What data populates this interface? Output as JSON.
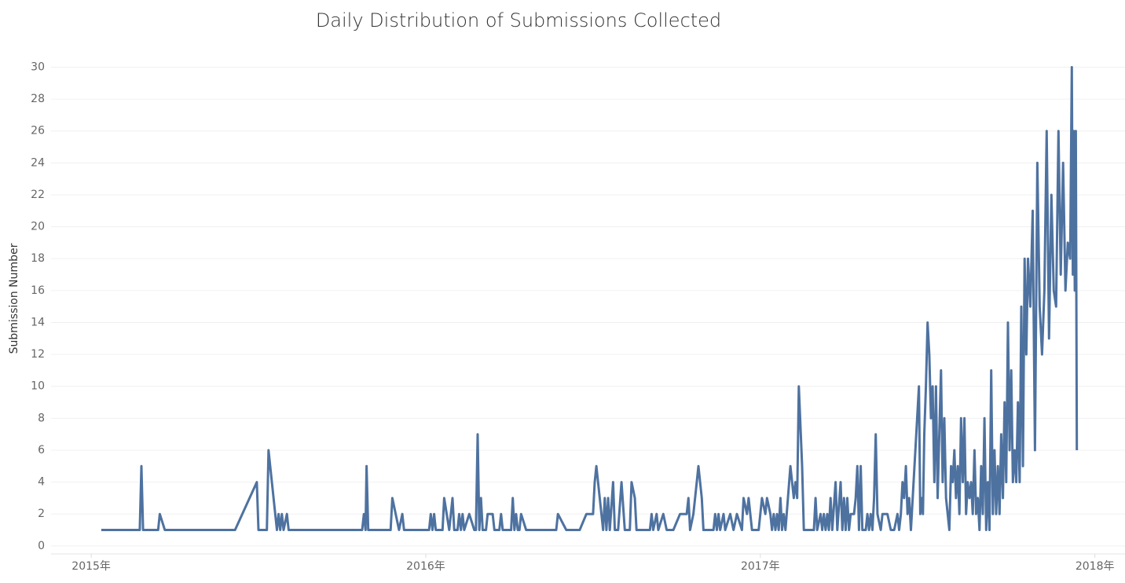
{
  "chart_data": {
    "type": "line",
    "title": "Daily Distribution of Submissions Collected",
    "y_label": "Submission Number",
    "color": "#4e72a0",
    "grid": true,
    "xlim": [
      2014.88,
      2018.09
    ],
    "xticks": [
      {
        "value": 2015,
        "label": "2015年"
      },
      {
        "value": 2016,
        "label": "2016年"
      },
      {
        "value": 2017,
        "label": "2017年"
      },
      {
        "value": 2018,
        "label": "2018年"
      }
    ],
    "ylim": [
      -0.5,
      31.5
    ],
    "yticks": [
      0,
      2,
      4,
      6,
      8,
      10,
      12,
      14,
      16,
      18,
      20,
      22,
      24,
      26,
      28,
      30
    ],
    "x": [
      2015.03,
      2015.145,
      2015.15,
      2015.155,
      2015.2,
      2015.205,
      2015.22,
      2015.43,
      2015.495,
      2015.5,
      2015.525,
      2015.53,
      2015.545,
      2015.555,
      2015.56,
      2015.565,
      2015.57,
      2015.575,
      2015.585,
      2015.59,
      2015.81,
      2015.815,
      2015.82,
      2015.823,
      2015.828,
      2015.895,
      2015.9,
      2015.92,
      2015.93,
      2015.935,
      2016.01,
      2016.015,
      2016.02,
      2016.025,
      2016.03,
      2016.05,
      2016.055,
      2016.07,
      2016.08,
      2016.085,
      2016.095,
      2016.1,
      2016.105,
      2016.11,
      2016.115,
      2016.13,
      2016.145,
      2016.15,
      2016.155,
      2016.16,
      2016.165,
      2016.17,
      2016.18,
      2016.185,
      2016.2,
      2016.205,
      2016.22,
      2016.225,
      2016.23,
      2016.255,
      2016.26,
      2016.265,
      2016.27,
      2016.275,
      2016.28,
      2016.285,
      2016.3,
      2016.39,
      2016.395,
      2016.42,
      2016.46,
      2016.48,
      2016.5,
      2016.505,
      2016.51,
      2016.52,
      2016.53,
      2016.535,
      2016.54,
      2016.545,
      2016.55,
      2016.56,
      2016.565,
      2016.575,
      2016.585,
      2016.595,
      2016.61,
      2016.615,
      2016.625,
      2016.63,
      2016.67,
      2016.675,
      2016.68,
      2016.69,
      2016.695,
      2016.71,
      2016.72,
      2016.74,
      2016.76,
      2016.78,
      2016.785,
      2016.79,
      2016.8,
      2016.81,
      2016.815,
      2016.825,
      2016.83,
      2016.86,
      2016.865,
      2016.87,
      2016.875,
      2016.88,
      2016.89,
      2016.895,
      2016.91,
      2016.92,
      2016.93,
      2016.945,
      2016.95,
      2016.96,
      2016.965,
      2016.975,
      2016.995,
      2017.0,
      2017.005,
      2017.015,
      2017.02,
      2017.03,
      2017.035,
      2017.04,
      2017.045,
      2017.05,
      2017.055,
      2017.06,
      2017.065,
      2017.07,
      2017.075,
      2017.09,
      2017.1,
      2017.105,
      2017.11,
      2017.115,
      2017.125,
      2017.13,
      2017.16,
      2017.165,
      2017.17,
      2017.18,
      2017.185,
      2017.19,
      2017.195,
      2017.2,
      2017.205,
      2017.21,
      2017.215,
      2017.225,
      2017.23,
      2017.24,
      2017.245,
      2017.25,
      2017.255,
      2017.26,
      2017.265,
      2017.27,
      2017.28,
      2017.285,
      2017.29,
      2017.295,
      2017.3,
      2017.305,
      2017.315,
      2017.32,
      2017.325,
      2017.33,
      2017.335,
      2017.34,
      2017.345,
      2017.35,
      2017.36,
      2017.365,
      2017.38,
      2017.39,
      2017.4,
      2017.41,
      2017.415,
      2017.42,
      2017.425,
      2017.43,
      2017.435,
      2017.44,
      2017.445,
      2017.45,
      2017.474,
      2017.478,
      2017.482,
      2017.486,
      2017.49,
      2017.495,
      2017.5,
      2017.505,
      2017.51,
      2017.515,
      2017.52,
      2017.525,
      2017.53,
      2017.535,
      2017.54,
      2017.545,
      2017.55,
      2017.555,
      2017.565,
      2017.57,
      2017.575,
      2017.58,
      2017.585,
      2017.59,
      2017.595,
      2017.6,
      2017.605,
      2017.61,
      2017.615,
      2017.62,
      2017.625,
      2017.63,
      2017.635,
      2017.64,
      2017.645,
      2017.65,
      2017.655,
      2017.66,
      2017.665,
      2017.67,
      2017.675,
      2017.68,
      2017.685,
      2017.69,
      2017.695,
      2017.7,
      2017.705,
      2017.71,
      2017.715,
      2017.72,
      2017.725,
      2017.73,
      2017.735,
      2017.74,
      2017.745,
      2017.75,
      2017.755,
      2017.76,
      2017.765,
      2017.77,
      2017.775,
      2017.78,
      2017.785,
      2017.79,
      2017.795,
      2017.8,
      2017.807,
      2017.814,
      2017.821,
      2017.828,
      2017.835,
      2017.842,
      2017.849,
      2017.856,
      2017.863,
      2017.87,
      2017.877,
      2017.884,
      2017.891,
      2017.898,
      2017.905,
      2017.912,
      2017.919,
      2017.926,
      2017.931,
      2017.934,
      2017.937,
      2017.94,
      2017.943,
      2017.946
    ],
    "values": [
      1,
      1,
      5,
      1,
      1,
      2,
      1,
      1,
      4,
      1,
      1,
      6,
      3,
      1,
      2,
      1,
      2,
      1,
      2,
      1,
      1,
      2,
      1,
      5,
      1,
      1,
      3,
      1,
      2,
      1,
      1,
      2,
      1,
      2,
      1,
      1,
      3,
      1,
      3,
      1,
      1,
      2,
      1,
      2,
      1,
      2,
      1,
      1,
      7,
      1,
      3,
      1,
      1,
      2,
      2,
      1,
      1,
      2,
      1,
      1,
      3,
      1,
      2,
      1,
      1,
      2,
      1,
      1,
      2,
      1,
      1,
      2,
      2,
      4,
      5,
      3,
      1,
      3,
      1,
      3,
      1,
      4,
      1,
      1,
      4,
      1,
      1,
      4,
      3,
      1,
      1,
      2,
      1,
      2,
      1,
      2,
      1,
      1,
      2,
      2,
      3,
      1,
      2,
      4,
      5,
      3,
      1,
      1,
      2,
      1,
      2,
      1,
      2,
      1,
      2,
      1,
      2,
      1,
      3,
      2,
      3,
      1,
      1,
      2,
      3,
      2,
      3,
      2,
      1,
      2,
      1,
      2,
      1,
      3,
      1,
      2,
      1,
      5,
      3,
      4,
      3,
      10,
      5,
      1,
      1,
      3,
      1,
      2,
      1,
      2,
      1,
      2,
      1,
      3,
      1,
      4,
      1,
      4,
      1,
      3,
      1,
      3,
      1,
      2,
      2,
      3,
      5,
      1,
      5,
      1,
      1,
      2,
      1,
      2,
      1,
      3,
      7,
      2,
      1,
      2,
      2,
      1,
      1,
      2,
      1,
      2,
      4,
      3,
      5,
      2,
      3,
      1,
      10,
      2,
      3,
      2,
      7,
      10,
      14,
      12,
      8,
      10,
      4,
      10,
      3,
      7,
      11,
      4,
      8,
      3,
      1,
      5,
      4,
      6,
      3,
      5,
      2,
      8,
      4,
      8,
      2,
      4,
      3,
      4,
      2,
      6,
      2,
      3,
      1,
      5,
      2,
      8,
      1,
      4,
      1,
      11,
      2,
      6,
      2,
      5,
      2,
      7,
      3,
      9,
      4,
      14,
      6,
      11,
      4,
      6,
      4,
      9,
      4,
      15,
      5,
      18,
      12,
      18,
      15,
      21,
      6,
      24,
      15,
      12,
      16,
      26,
      13,
      22,
      16,
      15,
      26,
      17,
      24,
      16,
      19,
      18,
      30,
      17,
      26,
      16,
      26,
      6
    ]
  }
}
